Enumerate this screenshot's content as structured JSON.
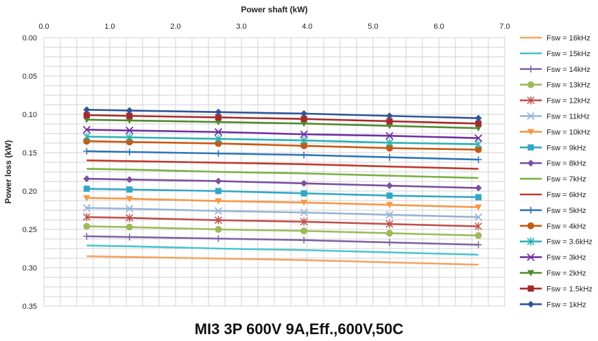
{
  "chart_data": {
    "type": "line",
    "title": "MI3 3P 600V 9A,Eff.,600V,50C",
    "xlabel": "Power shaft (kW)",
    "ylabel": "Power loss (kW)",
    "xlim": [
      0.0,
      7.0
    ],
    "ylim": [
      0.0,
      0.35
    ],
    "x_ticks": [
      "0.0",
      "1.0",
      "2.0",
      "3.0",
      "4.0",
      "5.0",
      "6.0",
      "7.0"
    ],
    "y_ticks": [
      "0.00",
      "0.05",
      "0.10",
      "0.15",
      "0.20",
      "0.25",
      "0.30",
      "0.35"
    ],
    "grid": true,
    "legend_position": "right",
    "x": [
      0.65,
      1.3,
      2.65,
      3.95,
      5.25,
      6.6
    ],
    "series": [
      {
        "name": "Fsw = 16kHz",
        "color": "#f4a460",
        "marker": "none",
        "values": [
          0.285,
          0.286,
          0.288,
          0.29,
          0.293,
          0.296
        ]
      },
      {
        "name": "Fsw = 15kHz",
        "color": "#4bc4cc",
        "marker": "none",
        "values": [
          0.271,
          0.272,
          0.275,
          0.277,
          0.28,
          0.283
        ]
      },
      {
        "name": "Fsw = 14kHz",
        "color": "#8064a2",
        "marker": "plus",
        "values": [
          0.259,
          0.26,
          0.262,
          0.264,
          0.267,
          0.27
        ]
      },
      {
        "name": "Fsw = 13kHz",
        "color": "#9bbb59",
        "marker": "circle",
        "values": [
          0.246,
          0.247,
          0.25,
          0.252,
          0.255,
          0.258
        ]
      },
      {
        "name": "Fsw = 12kHz",
        "color": "#c0504d",
        "marker": "star",
        "values": [
          0.234,
          0.235,
          0.238,
          0.24,
          0.243,
          0.246
        ]
      },
      {
        "name": "Fsw = 11kHz",
        "color": "#95b3d7",
        "marker": "cross",
        "values": [
          0.222,
          0.223,
          0.226,
          0.228,
          0.231,
          0.234
        ]
      },
      {
        "name": "Fsw = 10kHz",
        "color": "#f79646",
        "marker": "triangle-down",
        "values": [
          0.209,
          0.21,
          0.213,
          0.215,
          0.218,
          0.221
        ]
      },
      {
        "name": "Fsw = 9kHz",
        "color": "#31a7c4",
        "marker": "square",
        "values": [
          0.197,
          0.198,
          0.2,
          0.203,
          0.206,
          0.208
        ]
      },
      {
        "name": "Fsw = 8kHz",
        "color": "#7b4fa0",
        "marker": "diamond",
        "values": [
          0.184,
          0.185,
          0.187,
          0.19,
          0.193,
          0.196
        ]
      },
      {
        "name": "Fsw = 7kHz",
        "color": "#77b041",
        "marker": "none",
        "values": [
          0.171,
          0.172,
          0.175,
          0.177,
          0.18,
          0.183
        ]
      },
      {
        "name": "Fsw = 6kHz",
        "color": "#c0392b",
        "marker": "none",
        "values": [
          0.16,
          0.161,
          0.163,
          0.165,
          0.168,
          0.171
        ]
      },
      {
        "name": "Fsw = 5kHz",
        "color": "#2e75b6",
        "marker": "plus",
        "values": [
          0.148,
          0.149,
          0.151,
          0.153,
          0.156,
          0.159
        ]
      },
      {
        "name": "Fsw = 4kHz",
        "color": "#c55a11",
        "marker": "circle",
        "values": [
          0.135,
          0.136,
          0.138,
          0.141,
          0.144,
          0.146
        ]
      },
      {
        "name": "Fsw = 3.6kHz",
        "color": "#2bb1b1",
        "marker": "star",
        "values": [
          0.129,
          0.13,
          0.132,
          0.134,
          0.137,
          0.139
        ]
      },
      {
        "name": "Fsw = 3kHz",
        "color": "#7030a0",
        "marker": "cross",
        "values": [
          0.12,
          0.121,
          0.123,
          0.126,
          0.128,
          0.131
        ]
      },
      {
        "name": "Fsw = 2kHz",
        "color": "#4f8a2f",
        "marker": "triangle-down",
        "values": [
          0.107,
          0.108,
          0.11,
          0.112,
          0.115,
          0.118
        ]
      },
      {
        "name": "Fsw = 1.5kHz",
        "color": "#a52a2a",
        "marker": "square",
        "values": [
          0.101,
          0.102,
          0.104,
          0.106,
          0.109,
          0.112
        ]
      },
      {
        "name": "Fsw = 1kHz",
        "color": "#2f5597",
        "marker": "diamond",
        "values": [
          0.094,
          0.095,
          0.097,
          0.099,
          0.102,
          0.105
        ]
      }
    ]
  }
}
